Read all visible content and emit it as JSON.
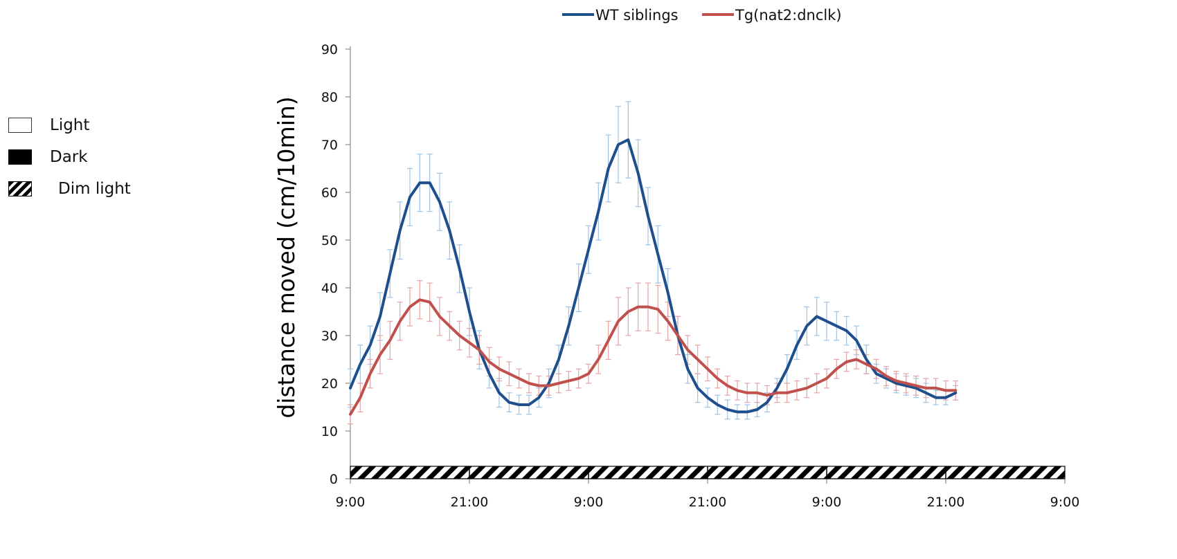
{
  "conditions_legend": [
    {
      "label": "Light",
      "pattern": "white"
    },
    {
      "label": "Dark",
      "pattern": "black"
    },
    {
      "label": "Dim light",
      "pattern": "hatched"
    }
  ],
  "chart_data": {
    "type": "line",
    "ylabel": "distance moved (cm/10min)",
    "xlabel": "",
    "ylim": [
      0,
      90
    ],
    "yticks": [
      0,
      10,
      20,
      30,
      40,
      50,
      60,
      70,
      80,
      90
    ],
    "x_hours_range": [
      0,
      72
    ],
    "xtick_hours": [
      0,
      12,
      24,
      36,
      48,
      60,
      72
    ],
    "xtick_labels": [
      "9:00",
      "21:00",
      "9:00",
      "21:00",
      "9:00",
      "21:00",
      "9:00"
    ],
    "light_condition_bar": "Dim light",
    "legend_position": "top",
    "series": [
      {
        "name": "WT siblings",
        "color": "#1f4e8c",
        "error_color": "#9dc3e6",
        "points": [
          [
            0,
            19,
            4
          ],
          [
            1,
            24,
            4
          ],
          [
            2,
            28,
            4
          ],
          [
            3,
            34,
            5
          ],
          [
            4,
            43,
            5
          ],
          [
            5,
            52,
            6
          ],
          [
            6,
            59,
            6
          ],
          [
            7,
            62,
            6
          ],
          [
            8,
            62,
            6
          ],
          [
            9,
            58,
            6
          ],
          [
            10,
            52,
            6
          ],
          [
            11,
            44,
            5
          ],
          [
            12,
            35,
            5
          ],
          [
            13,
            27,
            4
          ],
          [
            14,
            22,
            3
          ],
          [
            15,
            18,
            3
          ],
          [
            16,
            16,
            2
          ],
          [
            17,
            15.5,
            2
          ],
          [
            18,
            15.5,
            2
          ],
          [
            19,
            17,
            2
          ],
          [
            20,
            20,
            3
          ],
          [
            21,
            25,
            3
          ],
          [
            22,
            32,
            4
          ],
          [
            23,
            40,
            5
          ],
          [
            24,
            48,
            5
          ],
          [
            25,
            56,
            6
          ],
          [
            26,
            65,
            7
          ],
          [
            27,
            70,
            8
          ],
          [
            28,
            71,
            8
          ],
          [
            29,
            64,
            7
          ],
          [
            30,
            55,
            6
          ],
          [
            31,
            47,
            6
          ],
          [
            32,
            39,
            5
          ],
          [
            33,
            30,
            4
          ],
          [
            34,
            23,
            3
          ],
          [
            35,
            19,
            3
          ],
          [
            36,
            17,
            2
          ],
          [
            37,
            15.5,
            2
          ],
          [
            38,
            14.5,
            2
          ],
          [
            39,
            14,
            1.5
          ],
          [
            40,
            14,
            1.5
          ],
          [
            41,
            14.5,
            1.5
          ],
          [
            42,
            16,
            2
          ],
          [
            43,
            19,
            2
          ],
          [
            44,
            23,
            3
          ],
          [
            45,
            28,
            3
          ],
          [
            46,
            32,
            4
          ],
          [
            47,
            34,
            4
          ],
          [
            48,
            33,
            4
          ],
          [
            49,
            32,
            3
          ],
          [
            50,
            31,
            3
          ],
          [
            51,
            29,
            3
          ],
          [
            52,
            25,
            3
          ],
          [
            53,
            22,
            2
          ],
          [
            54,
            21,
            2
          ],
          [
            55,
            20,
            2
          ],
          [
            56,
            19.5,
            2
          ],
          [
            57,
            19,
            2
          ],
          [
            58,
            18,
            2
          ],
          [
            59,
            17,
            1.5
          ],
          [
            60,
            17,
            1.5
          ],
          [
            61,
            18,
            1.5
          ]
        ]
      },
      {
        "name": "Tg(nat2:dnclk)",
        "color": "#c0504d",
        "error_color": "#e6a3a3",
        "points": [
          [
            0,
            13.5,
            2
          ],
          [
            1,
            17,
            3
          ],
          [
            2,
            22,
            3
          ],
          [
            3,
            26,
            4
          ],
          [
            4,
            29,
            4
          ],
          [
            5,
            33,
            4
          ],
          [
            6,
            36,
            4
          ],
          [
            7,
            37.5,
            4
          ],
          [
            8,
            37,
            4
          ],
          [
            9,
            34,
            4
          ],
          [
            10,
            32,
            3
          ],
          [
            11,
            30,
            3
          ],
          [
            12,
            28.5,
            3
          ],
          [
            13,
            27,
            3
          ],
          [
            14,
            24.5,
            3
          ],
          [
            15,
            23,
            2.5
          ],
          [
            16,
            22,
            2.5
          ],
          [
            17,
            21,
            2
          ],
          [
            18,
            20,
            2
          ],
          [
            19,
            19.5,
            2
          ],
          [
            20,
            19.5,
            2
          ],
          [
            21,
            20,
            2
          ],
          [
            22,
            20.5,
            2
          ],
          [
            23,
            21,
            2
          ],
          [
            24,
            22,
            2
          ],
          [
            25,
            25,
            3
          ],
          [
            26,
            29,
            4
          ],
          [
            27,
            33,
            5
          ],
          [
            28,
            35,
            5
          ],
          [
            29,
            36,
            5
          ],
          [
            30,
            36,
            5
          ],
          [
            31,
            35.5,
            5
          ],
          [
            32,
            33,
            4
          ],
          [
            33,
            30,
            4
          ],
          [
            34,
            27,
            3
          ],
          [
            35,
            25,
            3
          ],
          [
            36,
            23,
            2.5
          ],
          [
            37,
            21,
            2
          ],
          [
            38,
            19.5,
            2
          ],
          [
            39,
            18.5,
            2
          ],
          [
            40,
            18,
            2
          ],
          [
            41,
            18,
            2
          ],
          [
            42,
            17.5,
            2
          ],
          [
            43,
            18,
            2
          ],
          [
            44,
            18,
            2
          ],
          [
            45,
            18.5,
            2
          ],
          [
            46,
            19,
            2
          ],
          [
            47,
            20,
            2
          ],
          [
            48,
            21,
            2
          ],
          [
            49,
            23,
            2
          ],
          [
            50,
            24.5,
            2
          ],
          [
            51,
            25,
            2
          ],
          [
            52,
            24,
            2
          ],
          [
            53,
            23,
            2
          ],
          [
            54,
            21.5,
            2
          ],
          [
            55,
            20.5,
            2
          ],
          [
            56,
            20,
            2
          ],
          [
            57,
            19.5,
            2
          ],
          [
            58,
            19,
            2
          ],
          [
            59,
            19,
            2
          ],
          [
            60,
            18.5,
            2
          ],
          [
            61,
            18.5,
            2
          ]
        ]
      }
    ]
  }
}
